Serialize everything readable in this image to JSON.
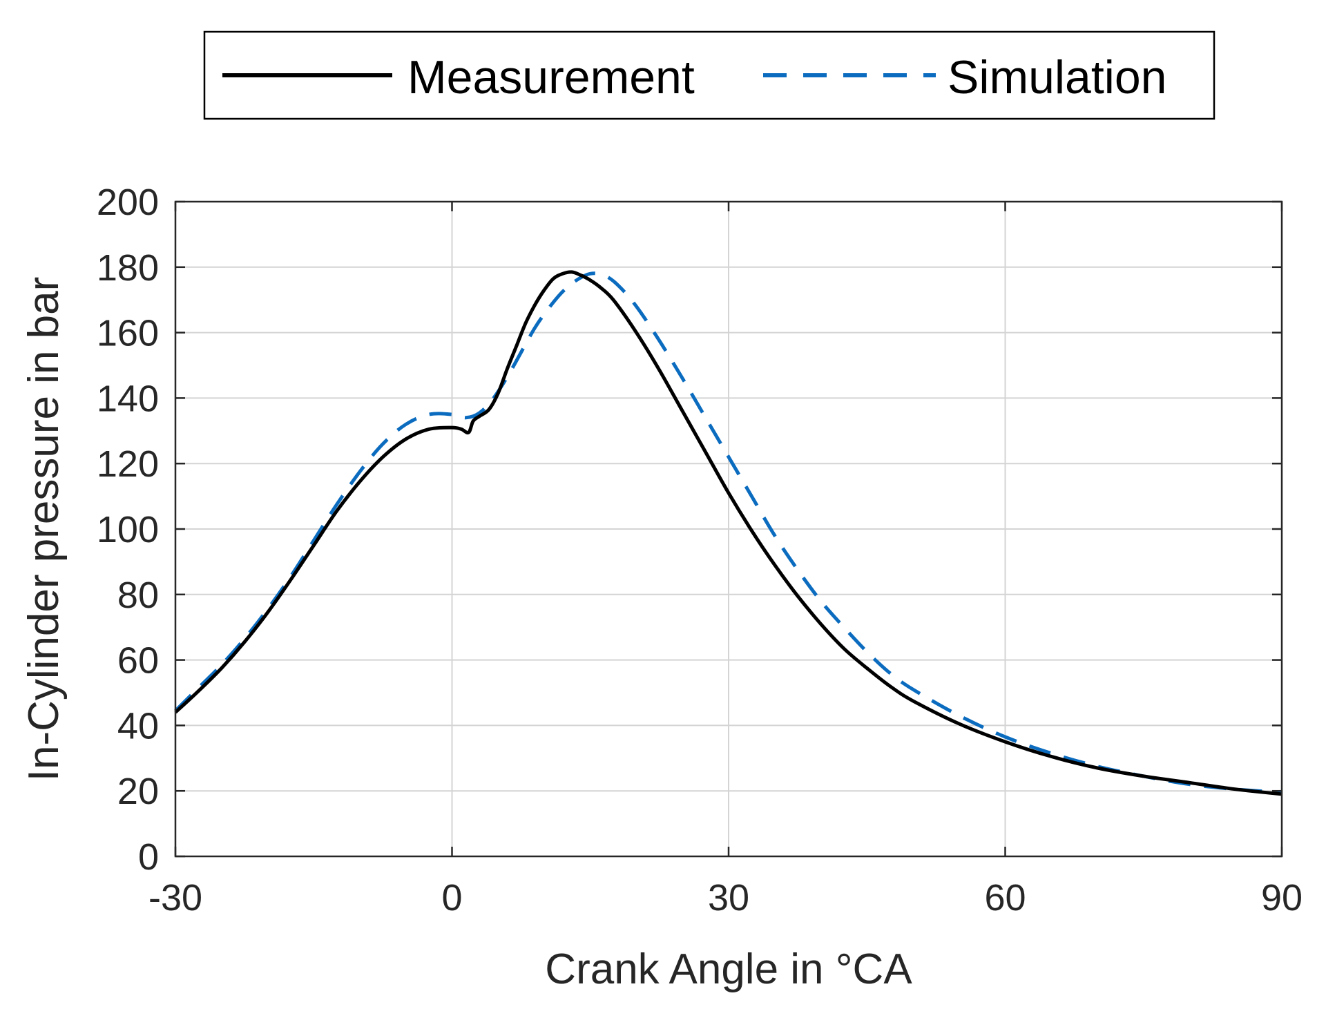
{
  "chart_data": {
    "type": "line",
    "title": "",
    "xlabel": "Crank Angle in °CA",
    "ylabel": "In-Cylinder pressure in bar",
    "xlim": [
      -30,
      90
    ],
    "ylim": [
      0,
      200
    ],
    "xticks": [
      -30,
      0,
      30,
      60,
      90
    ],
    "xtick_labels": [
      "-30",
      "0",
      "30",
      "60",
      "90"
    ],
    "yticks": [
      0,
      20,
      40,
      60,
      80,
      100,
      120,
      140,
      160,
      180,
      200
    ],
    "ytick_labels": [
      "0",
      "20",
      "40",
      "60",
      "80",
      "100",
      "120",
      "140",
      "160",
      "180",
      "200"
    ],
    "grid": true,
    "legend_position": "top-center, outside",
    "series": [
      {
        "name": "Measurement",
        "color": "#000000",
        "style": "solid",
        "x": [
          -30,
          -27.5,
          -25,
          -22.5,
          -20,
          -17.5,
          -15,
          -12.5,
          -10,
          -7.5,
          -5,
          -2.5,
          0,
          1,
          1.8,
          2.3,
          3,
          4,
          5,
          6,
          7,
          8,
          9,
          10,
          11,
          12,
          13,
          14,
          15,
          16,
          17.5,
          20,
          22.5,
          25,
          27.5,
          30,
          32.5,
          35,
          37.5,
          40,
          42.5,
          45,
          47.5,
          50,
          55,
          60,
          65,
          70,
          75,
          80,
          85,
          90
        ],
        "y": [
          44,
          50.5,
          57.5,
          65.5,
          74.5,
          84.5,
          95,
          105.5,
          114.5,
          122,
          127.5,
          130.5,
          131,
          130.5,
          129.5,
          133,
          134.5,
          136.5,
          141.5,
          149,
          156,
          163,
          168.5,
          173,
          176.5,
          178,
          178.5,
          177.5,
          176,
          174,
          170,
          160,
          148.5,
          136,
          123.5,
          111,
          99.5,
          89,
          79.5,
          71,
          63.5,
          57.5,
          52,
          47.5,
          40.5,
          35,
          30.5,
          27,
          24.5,
          22.5,
          20.5,
          19
        ]
      },
      {
        "name": "Simulation",
        "color": "#0b6cbf",
        "style": "dashed",
        "x": [
          -30,
          -27.5,
          -25,
          -22.5,
          -20,
          -17.5,
          -15,
          -12.5,
          -10,
          -7.5,
          -5,
          -2.5,
          0,
          1.5,
          3,
          4.5,
          6,
          7.5,
          9,
          10.5,
          12,
          13.5,
          15,
          16.5,
          18,
          20,
          22.5,
          25,
          27.5,
          30,
          32.5,
          35,
          37.5,
          40,
          42.5,
          45,
          47.5,
          50,
          55,
          60,
          65,
          70,
          75,
          80,
          85,
          90
        ],
        "y": [
          44.5,
          51.5,
          58.5,
          66.5,
          75.5,
          85.5,
          96.5,
          107.5,
          117.5,
          126,
          132,
          135,
          135,
          134,
          135.5,
          140,
          146.5,
          154,
          161.5,
          167.5,
          172.5,
          176,
          178,
          177.5,
          174.5,
          168,
          157.5,
          146,
          134,
          122,
          110,
          98,
          87.5,
          78,
          70,
          62.5,
          56,
          51,
          43,
          36.5,
          31.5,
          27.5,
          24.5,
          22,
          20.5,
          19.5
        ]
      }
    ]
  }
}
